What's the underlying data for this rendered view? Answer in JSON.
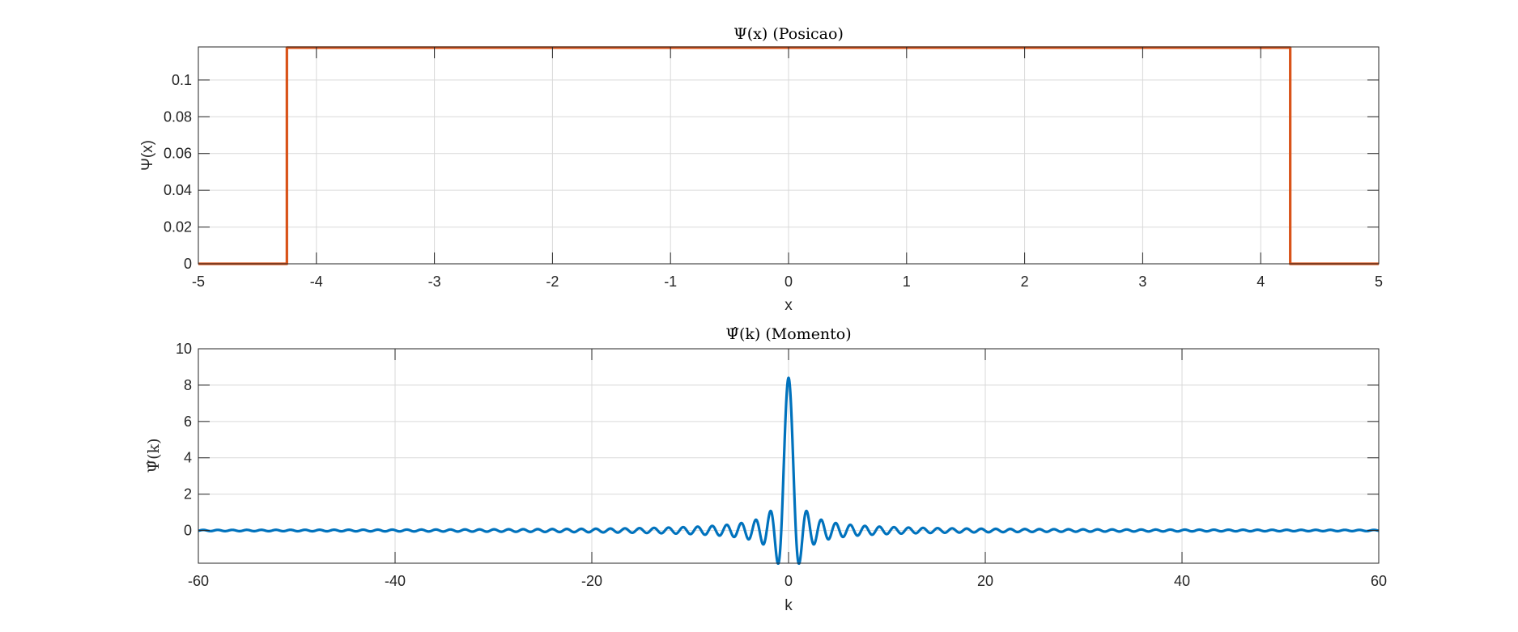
{
  "chart_data": [
    {
      "type": "line",
      "title": "Ψ(x) (Posicao)",
      "xlabel": "x",
      "ylabel": "Ψ(x)",
      "xlim": [
        -5,
        5
      ],
      "ylim": [
        0,
        0.118
      ],
      "xticks": [
        -5,
        -4,
        -3,
        -2,
        -1,
        0,
        1,
        2,
        3,
        4,
        5
      ],
      "xtick_labels": [
        "-5",
        "-4",
        "-3",
        "-2",
        "-1",
        "0",
        "1",
        "2",
        "3",
        "4",
        "5"
      ],
      "yticks": [
        0,
        0.02,
        0.04,
        0.06,
        0.08,
        0.1
      ],
      "ytick_labels": [
        "0",
        "0.02",
        "0.04",
        "0.06",
        "0.08",
        "0.1"
      ],
      "grid": true,
      "series": [
        {
          "color": "#D95319",
          "x": [
            -5,
            -4.25,
            -4.25,
            4.25,
            4.25,
            5
          ],
          "y": [
            0,
            0,
            0.1176,
            0.1176,
            0,
            0
          ]
        }
      ]
    },
    {
      "type": "line",
      "title": "Ψ̂(k) (Momento)",
      "xlabel": "k",
      "ylabel": "Ψ̂(k)",
      "xlim": [
        -60,
        60
      ],
      "ylim": [
        -1.8,
        10
      ],
      "xticks": [
        -60,
        -40,
        -20,
        0,
        20,
        40,
        60
      ],
      "xtick_labels": [
        "-60",
        "-40",
        "-20",
        "0",
        "20",
        "40",
        "60"
      ],
      "yticks": [
        0,
        2,
        4,
        6,
        8,
        10
      ],
      "ytick_labels": [
        "0",
        "2",
        "4",
        "6",
        "8",
        "10"
      ],
      "grid": true,
      "series": [
        {
          "color": "#0072BD",
          "function": "peak * sin(a*k)/(a*k)",
          "peak": 8.4,
          "a": 4.25
        }
      ]
    }
  ]
}
